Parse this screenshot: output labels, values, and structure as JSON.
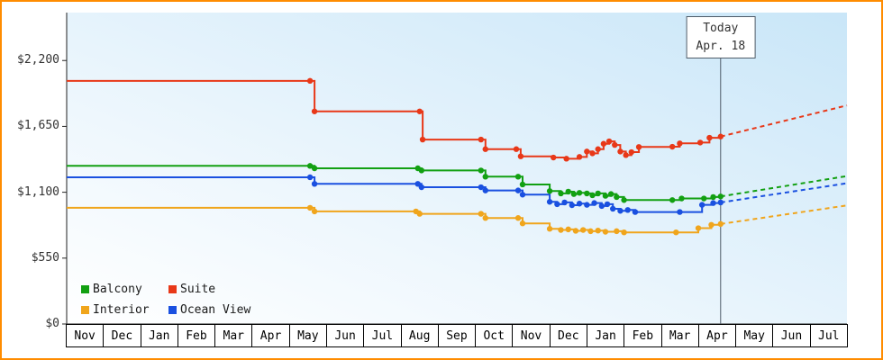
{
  "frame": {
    "border_color": "#ff8c00"
  },
  "chart_data": {
    "type": "line",
    "description_visible": false,
    "x_axis": {
      "months": [
        "Nov",
        "Dec",
        "Jan",
        "Feb",
        "Mar",
        "Apr",
        "May",
        "Jun",
        "Jul",
        "Aug",
        "Sep",
        "Oct",
        "Nov",
        "Dec",
        "Jan",
        "Feb",
        "Mar",
        "Apr",
        "May",
        "Jun",
        "Jul"
      ]
    },
    "y_axis": {
      "max": 2600,
      "ticks": [
        {
          "label": "$2,200",
          "value": 2200
        },
        {
          "label": "$1,650",
          "value": 1650
        },
        {
          "label": "$1,100",
          "value": 1100
        },
        {
          "label": "$550",
          "value": 550
        },
        {
          "label": "$0",
          "value": 0
        }
      ]
    },
    "x_max": 21,
    "today": {
      "x": 17.6,
      "line1": "Today",
      "line2": "Apr. 18",
      "line_color": "#4e5b68"
    },
    "series": [
      {
        "name": "Interior",
        "color": "#f0a51c",
        "points": [
          [
            0,
            970
          ],
          [
            6.55,
            970
          ],
          [
            6.67,
            940
          ],
          [
            9.4,
            940
          ],
          [
            9.5,
            920
          ],
          [
            11.15,
            920
          ],
          [
            11.27,
            885
          ],
          [
            12.15,
            885
          ],
          [
            12.27,
            840
          ],
          [
            13.0,
            795
          ],
          [
            13.3,
            785
          ],
          [
            13.5,
            790
          ],
          [
            13.7,
            778
          ],
          [
            13.9,
            785
          ],
          [
            14.1,
            775
          ],
          [
            14.3,
            780
          ],
          [
            14.5,
            770
          ],
          [
            14.8,
            775
          ],
          [
            15.0,
            765
          ],
          [
            16.4,
            765
          ],
          [
            17.0,
            800
          ],
          [
            17.35,
            828
          ],
          [
            17.6,
            835
          ]
        ],
        "forecast_end": [
          21,
          990
        ]
      },
      {
        "name": "Ocean View",
        "color": "#1a50e0",
        "points": [
          [
            0,
            1225
          ],
          [
            6.55,
            1225
          ],
          [
            6.67,
            1170
          ],
          [
            9.45,
            1170
          ],
          [
            9.55,
            1142
          ],
          [
            11.15,
            1142
          ],
          [
            11.27,
            1115
          ],
          [
            12.15,
            1115
          ],
          [
            12.27,
            1080
          ],
          [
            13.0,
            1020
          ],
          [
            13.2,
            1000
          ],
          [
            13.4,
            1015
          ],
          [
            13.6,
            992
          ],
          [
            13.8,
            1005
          ],
          [
            14.0,
            995
          ],
          [
            14.2,
            1010
          ],
          [
            14.4,
            985
          ],
          [
            14.55,
            1000
          ],
          [
            14.7,
            962
          ],
          [
            14.9,
            945
          ],
          [
            15.1,
            952
          ],
          [
            15.3,
            935
          ],
          [
            16.5,
            935
          ],
          [
            17.1,
            995
          ],
          [
            17.4,
            1010
          ],
          [
            17.6,
            1015
          ]
        ],
        "forecast_end": [
          21,
          1175
        ]
      },
      {
        "name": "Balcony",
        "color": "#12a012",
        "points": [
          [
            0,
            1320
          ],
          [
            6.55,
            1320
          ],
          [
            6.67,
            1300
          ],
          [
            9.45,
            1300
          ],
          [
            9.55,
            1282
          ],
          [
            11.15,
            1282
          ],
          [
            11.27,
            1230
          ],
          [
            12.15,
            1230
          ],
          [
            12.27,
            1165
          ],
          [
            13.0,
            1110
          ],
          [
            13.3,
            1090
          ],
          [
            13.5,
            1105
          ],
          [
            13.65,
            1085
          ],
          [
            13.8,
            1095
          ],
          [
            14.0,
            1090
          ],
          [
            14.15,
            1075
          ],
          [
            14.3,
            1090
          ],
          [
            14.5,
            1070
          ],
          [
            14.65,
            1085
          ],
          [
            14.8,
            1060
          ],
          [
            15.0,
            1035
          ],
          [
            16.3,
            1035
          ],
          [
            16.55,
            1048
          ],
          [
            17.15,
            1048
          ],
          [
            17.4,
            1060
          ],
          [
            17.6,
            1065
          ]
        ],
        "forecast_end": [
          21,
          1235
        ]
      },
      {
        "name": "Suite",
        "color": "#e83818",
        "points": [
          [
            0,
            2030
          ],
          [
            6.55,
            2030
          ],
          [
            6.67,
            1775
          ],
          [
            9.5,
            1775
          ],
          [
            9.58,
            1540
          ],
          [
            11.15,
            1540
          ],
          [
            11.27,
            1460
          ],
          [
            12.1,
            1460
          ],
          [
            12.22,
            1400
          ],
          [
            13.1,
            1390
          ],
          [
            13.45,
            1380
          ],
          [
            13.8,
            1395
          ],
          [
            14.0,
            1440
          ],
          [
            14.15,
            1425
          ],
          [
            14.3,
            1460
          ],
          [
            14.45,
            1505
          ],
          [
            14.6,
            1525
          ],
          [
            14.75,
            1495
          ],
          [
            14.9,
            1440
          ],
          [
            15.05,
            1410
          ],
          [
            15.2,
            1435
          ],
          [
            15.4,
            1478
          ],
          [
            16.3,
            1480
          ],
          [
            16.5,
            1508
          ],
          [
            17.05,
            1515
          ],
          [
            17.3,
            1555
          ],
          [
            17.6,
            1565
          ]
        ],
        "forecast_end": [
          21,
          1825
        ]
      }
    ],
    "legend_rows": [
      [
        "Balcony",
        "Suite"
      ],
      [
        "Interior",
        "Ocean View"
      ]
    ]
  }
}
